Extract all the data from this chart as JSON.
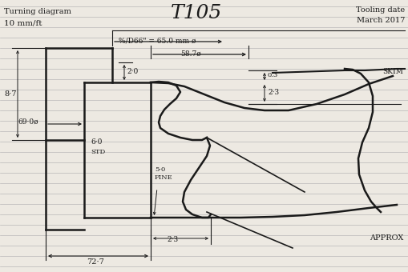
{
  "title": "T105",
  "subtitle_left": "Turning diagram",
  "subtitle_left2": "10 mm/ft",
  "subtitle_right": "Tooling date\nMarch 2017",
  "bg_color": "#ede9e2",
  "line_color": "#1a1a1a",
  "ruled_line_color": "#b8b8b8",
  "dim_65": "%/D66\" = 65.0 mm ø",
  "dim_587": "58.7ø",
  "dim_03": "0.3",
  "dim_23a": "2·3",
  "dim_20": "2·0",
  "dim_60": "6·0",
  "dim_std": "STD",
  "dim_50": "5·0",
  "dim_fine": "FINE",
  "dim_23b": "2·3",
  "dim_690": "69·0ø",
  "dim_87": "8·7",
  "dim_727": "72·7",
  "label_skim": "SKIM",
  "label_approx": "APPROX"
}
